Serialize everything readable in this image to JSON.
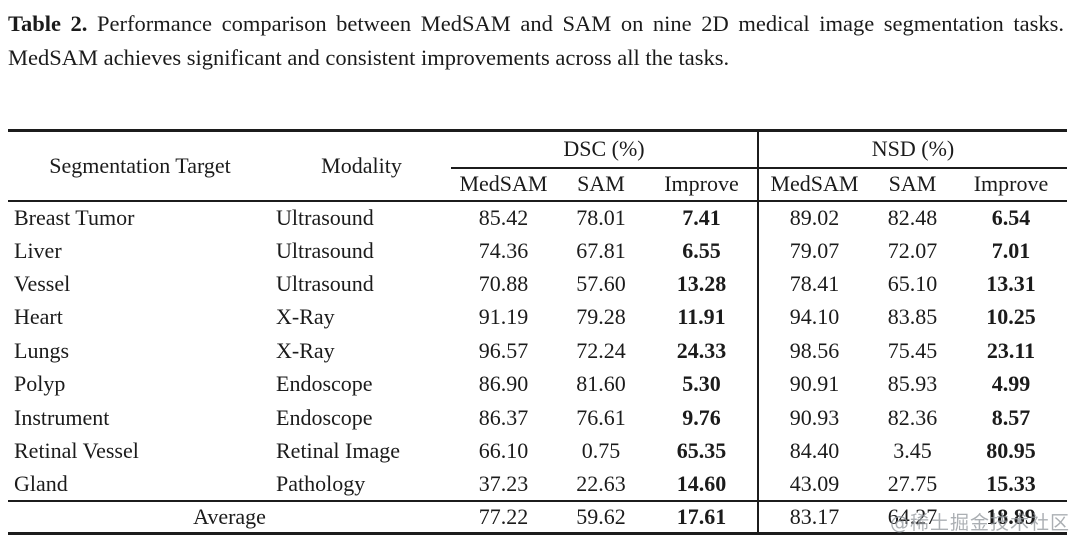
{
  "caption": {
    "label": "Table 2.",
    "text": " Performance comparison between MedSAM and SAM on nine 2D medical image segmentation tasks. MedSAM achieves significant and consistent improvements across all the tasks."
  },
  "table": {
    "columns": {
      "target": "Segmentation Target",
      "modality": "Modality",
      "groups": [
        {
          "label": "DSC (%)",
          "sub": [
            "MedSAM",
            "SAM",
            "Improve"
          ]
        },
        {
          "label": "NSD (%)",
          "sub": [
            "MedSAM",
            "SAM",
            "Improve"
          ]
        }
      ]
    },
    "rows": [
      {
        "target": "Breast Tumor",
        "modality": "Ultrasound",
        "dsc": [
          "85.42",
          "78.01",
          "7.41"
        ],
        "nsd": [
          "89.02",
          "82.48",
          "6.54"
        ]
      },
      {
        "target": "Liver",
        "modality": "Ultrasound",
        "dsc": [
          "74.36",
          "67.81",
          "6.55"
        ],
        "nsd": [
          "79.07",
          "72.07",
          "7.01"
        ]
      },
      {
        "target": "Vessel",
        "modality": "Ultrasound",
        "dsc": [
          "70.88",
          "57.60",
          "13.28"
        ],
        "nsd": [
          "78.41",
          "65.10",
          "13.31"
        ]
      },
      {
        "target": "Heart",
        "modality": "X-Ray",
        "dsc": [
          "91.19",
          "79.28",
          "11.91"
        ],
        "nsd": [
          "94.10",
          "83.85",
          "10.25"
        ]
      },
      {
        "target": "Lungs",
        "modality": "X-Ray",
        "dsc": [
          "96.57",
          "72.24",
          "24.33"
        ],
        "nsd": [
          "98.56",
          "75.45",
          "23.11"
        ]
      },
      {
        "target": "Polyp",
        "modality": "Endoscope",
        "dsc": [
          "86.90",
          "81.60",
          "5.30"
        ],
        "nsd": [
          "90.91",
          "85.93",
          "4.99"
        ]
      },
      {
        "target": "Instrument",
        "modality": "Endoscope",
        "dsc": [
          "86.37",
          "76.61",
          "9.76"
        ],
        "nsd": [
          "90.93",
          "82.36",
          "8.57"
        ]
      },
      {
        "target": "Retinal Vessel",
        "modality": "Retinal Image",
        "dsc": [
          "66.10",
          "0.75",
          "65.35"
        ],
        "nsd": [
          "84.40",
          "3.45",
          "80.95"
        ]
      },
      {
        "target": "Gland",
        "modality": "Pathology",
        "dsc": [
          "37.23",
          "22.63",
          "14.60"
        ],
        "nsd": [
          "43.09",
          "27.75",
          "15.33"
        ]
      }
    ],
    "average": {
      "label": "Average",
      "dsc": [
        "77.22",
        "59.62",
        "17.61"
      ],
      "nsd": [
        "83.17",
        "64.27",
        "18.89"
      ]
    }
  },
  "watermark": {
    "text": "@稀土掘金技术社区"
  }
}
